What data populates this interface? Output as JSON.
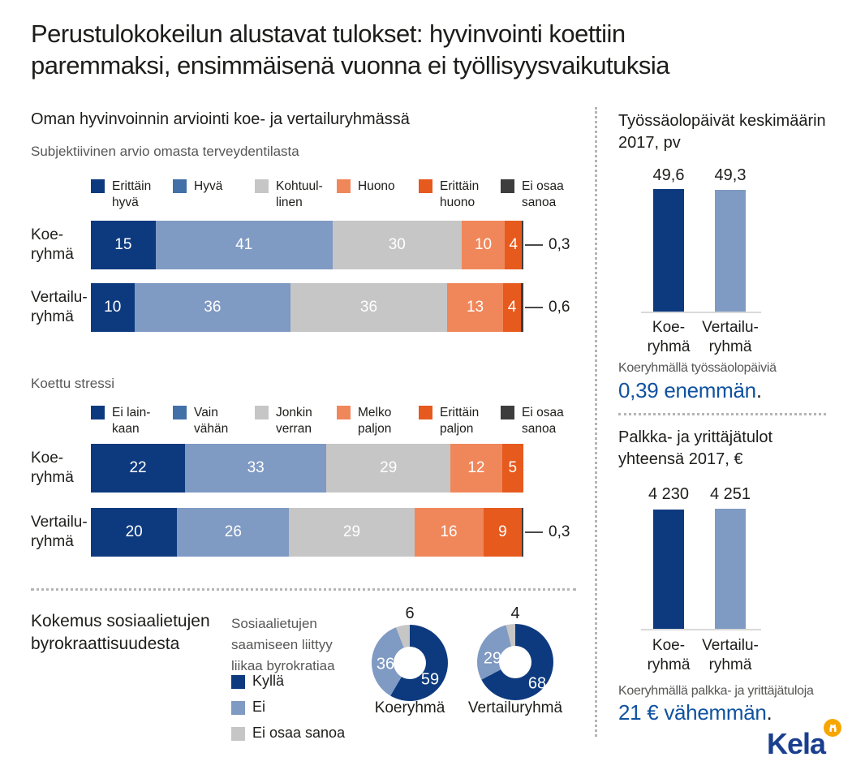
{
  "title": "Perustulokokeilun alustavat tulokset: hyvinvointi koettiin\nparemmaksi, ensimmäisenä vuonna ei työllisyysvaikutuksia",
  "left_section_title": "Oman hyvinvoinnin arviointi koe- ja vertailuryhmässä",
  "bureaucracy": {
    "title": "Kokemus sosiaalietujen\nbyrokraattisuudesta"
  },
  "colors": {
    "bar_palette": [
      "#0d3a7f",
      "#7f9ac3",
      "#c6c6c6",
      "#f0875a",
      "#e65a1e",
      "#3d3d3d"
    ],
    "legend_palette": [
      "#0d3a7f",
      "#4470a8",
      "#c6c6c6",
      "#f0875a",
      "#e65a1e",
      "#3d3d3d"
    ],
    "donut_palette": [
      "#0d3a7f",
      "#7f9ac3",
      "#c6c6c6"
    ],
    "accent_text": "#0f52a0",
    "text_dark": "#1d1d1b",
    "text_gray": "#575756",
    "kela_blue": "#1b3f8f",
    "kela_yellow": "#f7a600"
  },
  "chart_data": [
    {
      "type": "bar",
      "variant": "stacked-horizontal-percent",
      "title": "Subjektiivinen arvio omasta terveydentilasta",
      "legend": [
        "Erittäin\nhyvä",
        "Hyvä",
        "Kohtuul-\nlinen",
        "Huono",
        "Erittäin\nhuono",
        "Ei osaa\nsanoa"
      ],
      "categories": [
        "Koe-\nryhmä",
        "Vertailu-\nryhmä"
      ],
      "rows": [
        {
          "values": [
            15,
            41,
            30,
            10,
            4,
            0.3
          ],
          "labels": [
            "15",
            "41",
            "30",
            "10",
            "4",
            ""
          ],
          "annotation": "0,3"
        },
        {
          "values": [
            10,
            36,
            36,
            13,
            4,
            0.6
          ],
          "labels": [
            "10",
            "36",
            "36",
            "13",
            "4",
            ""
          ],
          "annotation": "0,6"
        }
      ]
    },
    {
      "type": "bar",
      "variant": "stacked-horizontal-percent",
      "title": "Koettu stressi",
      "legend": [
        "Ei lain-\nkaan",
        "Vain\nvähän",
        "Jonkin\nverran",
        "Melko\npaljon",
        "Erittäin\npaljon",
        "Ei osaa\nsanoa"
      ],
      "categories": [
        "Koe-\nryhmä",
        "Vertailu-\nryhmä"
      ],
      "rows": [
        {
          "values": [
            22,
            33,
            29,
            12,
            5
          ],
          "labels": [
            "22",
            "33",
            "29",
            "12",
            "5"
          ],
          "annotation": ""
        },
        {
          "values": [
            20,
            26,
            29,
            16,
            9,
            0.3
          ],
          "labels": [
            "20",
            "26",
            "29",
            "16",
            "9",
            ""
          ],
          "annotation": "0,3"
        }
      ]
    },
    {
      "type": "pie",
      "variant": "donut",
      "legend_title": "Sosiaalietujen\nsaamiseen liittyy\nliikaa byrokratiaa",
      "legend": [
        "Kyllä",
        "Ei",
        "Ei osaa sanoa"
      ],
      "series": [
        {
          "name": "Koeryhmä",
          "values": [
            59,
            36,
            6
          ],
          "labels": [
            "59",
            "36",
            "6"
          ]
        },
        {
          "name": "Vertailuryhmä",
          "values": [
            68,
            29,
            4
          ],
          "labels": [
            "68",
            "29",
            "4"
          ]
        }
      ]
    },
    {
      "type": "bar",
      "variant": "columns",
      "title": "Työssäolopäivät keskimäärin\n2017, pv",
      "categories": [
        "Koe-\nryhmä",
        "Vertailu-\nryhmä"
      ],
      "values": [
        49.6,
        49.3
      ],
      "value_labels": [
        "49,6",
        "49,3"
      ],
      "note": {
        "text": "Koeryhmällä työssäolopäiviä",
        "highlight": "0,39 enemmän",
        "period": "."
      }
    },
    {
      "type": "bar",
      "variant": "columns",
      "title": "Palkka- ja yrittäjätulot\nyhteensä 2017, €",
      "categories": [
        "Koe-\nryhmä",
        "Vertailu-\nryhmä"
      ],
      "values": [
        4230,
        4251
      ],
      "value_labels": [
        "4 230",
        "4 251"
      ],
      "note": {
        "text": "Koeryhmällä palkka- ja yrittäjätuloja",
        "highlight": "21 € vähemmän",
        "period": "."
      }
    }
  ],
  "kela": {
    "name": "Kela"
  }
}
